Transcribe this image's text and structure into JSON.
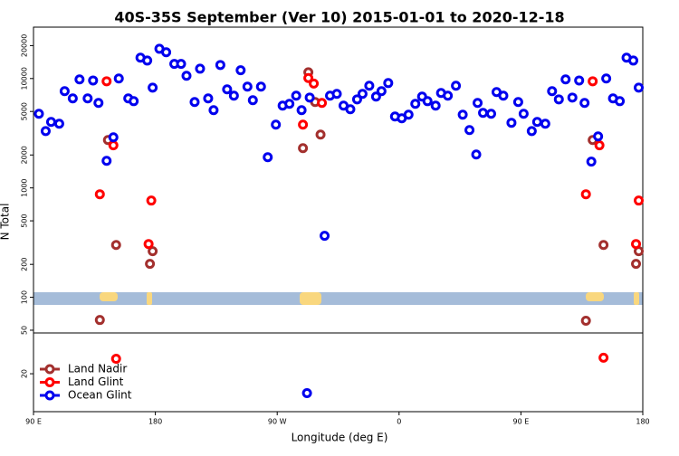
{
  "chart_data": {
    "type": "scatter",
    "title": "40S-35S September (Ver 10)   2015-01-01 to 2020-12-18",
    "xlabel": "Longitude (deg E)",
    "ylabel": "N Total",
    "xlim": [
      90,
      540
    ],
    "xticks": [
      {
        "value": 90,
        "label": "90 E"
      },
      {
        "value": 180,
        "label": "180"
      },
      {
        "value": 270,
        "label": "90 W"
      },
      {
        "value": 360,
        "label": "0"
      },
      {
        "value": 450,
        "label": "90 E"
      },
      {
        "value": 540,
        "label": "180"
      }
    ],
    "ylim": [
      9,
      29500
    ],
    "ylog": true,
    "yticks": [
      20,
      50,
      100,
      200,
      500,
      1000,
      2000,
      5000,
      10000,
      20000
    ],
    "legend": "lower left",
    "series": [
      {
        "name": "Land Nadir",
        "color": "#a3302e",
        "x": [
          145,
          139,
          151,
          176,
          178,
          289,
          293,
          298,
          302,
          498,
          503,
          511,
          535,
          537
        ],
        "values": [
          2740,
          62,
          301,
          202,
          264,
          2310,
          11400,
          6100,
          3070,
          61,
          2740,
          301,
          202,
          264
        ]
      },
      {
        "name": "Land Glint",
        "color": "#ff0000",
        "x": [
          144,
          139,
          149,
          151,
          175,
          177,
          289,
          293,
          297,
          303,
          498,
          503,
          508,
          511,
          535,
          537
        ],
        "values": [
          9440,
          875,
          2450,
          27.4,
          307,
          766,
          3790,
          10100,
          9000,
          5980,
          875,
          9440,
          2450,
          28,
          307,
          766
        ]
      },
      {
        "name": "Ocean Glint",
        "color": "#0000ee",
        "x": [
          94,
          99,
          103,
          109,
          113,
          119,
          124,
          130,
          134,
          138,
          149,
          144,
          153,
          160,
          164,
          169,
          174,
          178,
          183,
          188,
          194,
          199,
          203,
          209,
          213,
          219,
          223,
          228,
          233,
          238,
          243,
          248,
          252,
          258,
          263,
          269,
          274,
          279,
          284,
          288,
          294,
          305,
          309,
          314,
          319,
          324,
          329,
          333,
          338,
          343,
          347,
          352,
          357,
          362,
          367,
          372,
          377,
          381,
          387,
          391,
          396,
          402,
          407,
          412,
          417,
          418,
          422,
          428,
          432,
          437,
          443,
          448,
          452,
          458,
          462,
          468,
          473,
          478,
          483,
          488,
          493,
          497,
          502,
          507,
          513,
          518,
          523,
          528,
          533,
          537,
          292
        ],
        "values": [
          4760,
          3310,
          4010,
          3860,
          7660,
          6580,
          9820,
          6580,
          9600,
          5980,
          2900,
          1770,
          10000,
          6580,
          6210,
          15500,
          14600,
          8260,
          18700,
          17400,
          13600,
          13600,
          10600,
          6100,
          12300,
          6580,
          5140,
          13300,
          7960,
          6970,
          11900,
          8430,
          6340,
          8430,
          1910,
          3790,
          5650,
          5870,
          6970,
          5140,
          6700,
          365,
          6970,
          7240,
          5650,
          5240,
          6450,
          7240,
          8590,
          6840,
          7660,
          9090,
          4500,
          4330,
          4670,
          5870,
          6840,
          6210,
          5650,
          7380,
          6970,
          8590,
          4670,
          3380,
          2020,
          5980,
          4850,
          4760,
          7520,
          6970,
          3940,
          6100,
          4760,
          3310,
          4010,
          3860,
          7660,
          6450,
          9820,
          6700,
          9600,
          5980,
          1740,
          2960,
          10000,
          6580,
          6210,
          15500,
          14600,
          8260,
          13.3
        ]
      }
    ]
  }
}
